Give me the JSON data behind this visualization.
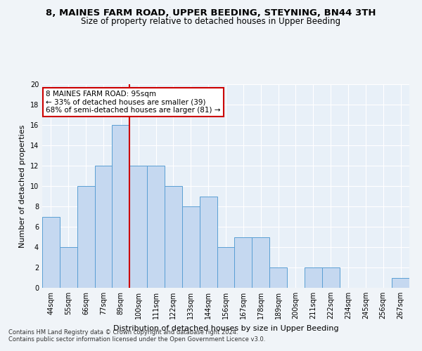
{
  "title1": "8, MAINES FARM ROAD, UPPER BEEDING, STEYNING, BN44 3TH",
  "title2": "Size of property relative to detached houses in Upper Beeding",
  "xlabel": "Distribution of detached houses by size in Upper Beeding",
  "ylabel": "Number of detached properties",
  "footnote1": "Contains HM Land Registry data © Crown copyright and database right 2024.",
  "footnote2": "Contains public sector information licensed under the Open Government Licence v3.0.",
  "categories": [
    "44sqm",
    "55sqm",
    "66sqm",
    "77sqm",
    "89sqm",
    "100sqm",
    "111sqm",
    "122sqm",
    "133sqm",
    "144sqm",
    "156sqm",
    "167sqm",
    "178sqm",
    "189sqm",
    "200sqm",
    "211sqm",
    "222sqm",
    "234sqm",
    "245sqm",
    "256sqm",
    "267sqm"
  ],
  "values": [
    7,
    4,
    10,
    12,
    16,
    12,
    12,
    10,
    8,
    9,
    4,
    5,
    5,
    2,
    0,
    2,
    2,
    0,
    0,
    0,
    1
  ],
  "bar_color": "#c5d8f0",
  "bar_edge_color": "#5a9fd4",
  "vline_color": "#cc0000",
  "annotation_text": "8 MAINES FARM ROAD: 95sqm\n← 33% of detached houses are smaller (39)\n68% of semi-detached houses are larger (81) →",
  "annotation_box_color": "#ffffff",
  "annotation_box_edge": "#cc0000",
  "ylim": [
    0,
    20
  ],
  "yticks": [
    0,
    2,
    4,
    6,
    8,
    10,
    12,
    14,
    16,
    18,
    20
  ],
  "background_color": "#e8f0f8",
  "grid_color": "#ffffff",
  "fig_background": "#f0f4f8",
  "title1_fontsize": 9.5,
  "title2_fontsize": 8.5,
  "xlabel_fontsize": 8,
  "ylabel_fontsize": 8,
  "annotation_fontsize": 7.5,
  "tick_fontsize": 7,
  "footnote_fontsize": 6
}
